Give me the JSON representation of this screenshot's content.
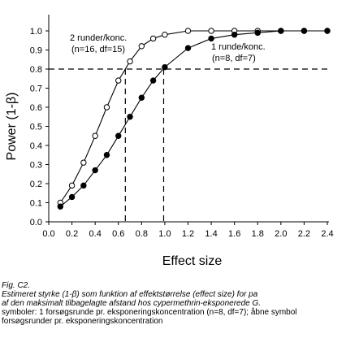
{
  "chart_data": {
    "type": "line",
    "xlabel": "Effect size",
    "ylabel": "Power (1-β)",
    "xlim": [
      0,
      2.4
    ],
    "ylim": [
      0,
      1.0
    ],
    "xticks": [
      "0.0",
      "0.2",
      "0.4",
      "0.6",
      "0.8",
      "1.0",
      "1.2",
      "1.4",
      "1.6",
      "1.8",
      "2.0",
      "2.2",
      "2.4"
    ],
    "yticks": [
      "0.0",
      "0.1",
      "0.2",
      "0.3",
      "0.4",
      "0.5",
      "0.6",
      "0.7",
      "0.8",
      "0.9",
      "1.0"
    ],
    "grid": false,
    "series": [
      {
        "marker": "open-circle",
        "label_line1": "2 runder/konc.",
        "label_line2": "(n=16, df=15)",
        "x": [
          0.1,
          0.2,
          0.3,
          0.4,
          0.5,
          0.6,
          0.7,
          0.8,
          0.9,
          1.0,
          1.2,
          1.4,
          1.6,
          1.8,
          2.0,
          2.2,
          2.4
        ],
        "y": [
          0.1,
          0.19,
          0.31,
          0.45,
          0.6,
          0.74,
          0.84,
          0.92,
          0.96,
          0.98,
          1.0,
          1.0,
          1.0,
          1.0,
          1.0,
          1.0,
          1.0
        ]
      },
      {
        "marker": "filled-circle",
        "label_line1": "1 runde/konc.",
        "label_line2": "(n=8, df=7)",
        "x": [
          0.1,
          0.2,
          0.3,
          0.4,
          0.5,
          0.6,
          0.7,
          0.8,
          0.9,
          1.0,
          1.2,
          1.4,
          1.6,
          1.8,
          2.0,
          2.2,
          2.4
        ],
        "y": [
          0.08,
          0.13,
          0.19,
          0.27,
          0.35,
          0.45,
          0.55,
          0.65,
          0.74,
          0.81,
          0.91,
          0.96,
          0.98,
          0.99,
          1.0,
          1.0,
          1.0
        ]
      }
    ],
    "reference_lines": {
      "horizontal_y": 0.8,
      "vertical_x": [
        0.66,
        0.99
      ]
    }
  },
  "caption": {
    "label": "Fig. C2.",
    "line1": "Estimeret styrke (1-β) som funktion af effektstørrelse (effect size) for pa",
    "line2": "af den maksimalt tilbagelagte afstand hos cypermethrin-eksponerede G.",
    "line3": "symboler: 1 forsøgsrunde pr. eksponeringskoncentration (n=8, df=7); åbne symbol",
    "line4": "forsøgsrunder pr. eksponeringskoncentration"
  }
}
